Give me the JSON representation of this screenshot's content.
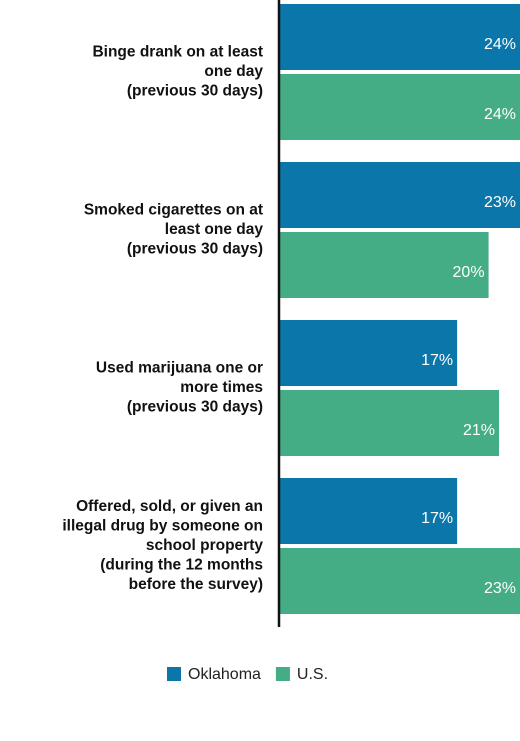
{
  "chart_data": {
    "type": "bar",
    "orientation": "horizontal",
    "categories": [
      [
        "Binge drank on at least",
        "one day",
        "(previous 30 days)"
      ],
      [
        "Smoked cigarettes on at",
        "least one day",
        "(previous 30 days)"
      ],
      [
        "Used marijuana one or",
        "more times",
        "(previous 30 days)"
      ],
      [
        "Offered, sold, or given an",
        "illegal drug by someone on",
        "school property",
        "(during the 12 months",
        "before the survey)"
      ]
    ],
    "series": [
      {
        "name": "Oklahoma",
        "color": "#0a76aa",
        "values": [
          24,
          23,
          17,
          17
        ],
        "value_labels": [
          "24%",
          "23%",
          "17%",
          "17%"
        ]
      },
      {
        "name": "U.S.",
        "color": "#45ad85",
        "values": [
          24,
          20,
          21,
          23
        ],
        "value_labels": [
          "24%",
          "20%",
          "21%",
          "23%"
        ]
      }
    ],
    "xlim": [
      0,
      23
    ],
    "legend": "bottom"
  }
}
